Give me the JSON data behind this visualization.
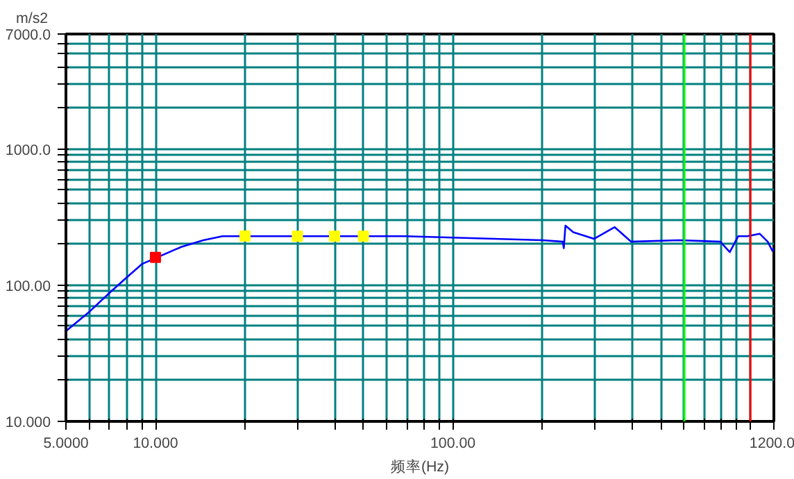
{
  "chart_data": {
    "type": "line",
    "xlabel": "频率(Hz)",
    "ylabel": "m/s2",
    "log": "xy",
    "grid": true,
    "xlim": [
      5,
      1200
    ],
    "ylim": [
      10,
      7000
    ],
    "xticks": [
      {
        "value": 5,
        "label": "5.0000"
      },
      {
        "value": 6,
        "label": null
      },
      {
        "value": 7,
        "label": null
      },
      {
        "value": 8,
        "label": null
      },
      {
        "value": 9,
        "label": null
      },
      {
        "value": 10,
        "label": "10.000"
      },
      {
        "value": 20,
        "label": null
      },
      {
        "value": 30,
        "label": null
      },
      {
        "value": 40,
        "label": null
      },
      {
        "value": 50,
        "label": null
      },
      {
        "value": 60,
        "label": null
      },
      {
        "value": 70,
        "label": null
      },
      {
        "value": 80,
        "label": null
      },
      {
        "value": 90,
        "label": null
      },
      {
        "value": 100,
        "label": "100.00"
      },
      {
        "value": 200,
        "label": null
      },
      {
        "value": 300,
        "label": null
      },
      {
        "value": 400,
        "label": null
      },
      {
        "value": 500,
        "label": null
      },
      {
        "value": 600,
        "label": null
      },
      {
        "value": 700,
        "label": null
      },
      {
        "value": 800,
        "label": null
      },
      {
        "value": 900,
        "label": null
      },
      {
        "value": 1000,
        "label": null
      },
      {
        "value": 1200,
        "label": "1200.0"
      }
    ],
    "yticks": [
      {
        "value": 10,
        "label": "10.000"
      },
      {
        "value": 20,
        "label": null
      },
      {
        "value": 30,
        "label": null
      },
      {
        "value": 40,
        "label": null
      },
      {
        "value": 50,
        "label": null
      },
      {
        "value": 60,
        "label": null
      },
      {
        "value": 70,
        "label": null
      },
      {
        "value": 80,
        "label": null
      },
      {
        "value": 90,
        "label": null
      },
      {
        "value": 100,
        "label": "100.00"
      },
      {
        "value": 200,
        "label": null
      },
      {
        "value": 300,
        "label": null
      },
      {
        "value": 400,
        "label": null
      },
      {
        "value": 500,
        "label": null
      },
      {
        "value": 600,
        "label": null
      },
      {
        "value": 700,
        "label": null
      },
      {
        "value": 800,
        "label": null
      },
      {
        "value": 900,
        "label": null
      },
      {
        "value": 1000,
        "label": "1000.0"
      },
      {
        "value": 2000,
        "label": null
      },
      {
        "value": 3000,
        "label": null
      },
      {
        "value": 4000,
        "label": null
      },
      {
        "value": 5000,
        "label": null
      },
      {
        "value": 6000,
        "label": null
      },
      {
        "value": 7000,
        "label": "7000.0"
      }
    ],
    "series": [
      {
        "color": "#0000ff",
        "x": [
          5,
          6,
          7.05,
          8,
          9,
          12.2,
          14.5,
          16.8,
          69,
          200,
          234,
          236,
          239,
          254,
          280,
          298,
          350,
          397,
          576,
          792,
          853,
          910,
          978,
          1075,
          1144,
          1186,
          1200
        ],
        "values": [
          46,
          64,
          89,
          114,
          143,
          191,
          214,
          229,
          229,
          214,
          209,
          187,
          274,
          245,
          229,
          219,
          267,
          209,
          214,
          209,
          175,
          229,
          229,
          239,
          209,
          179,
          187
        ]
      },
      {
        "type": "scatter",
        "marker": "square",
        "x": [
          10,
          20,
          30,
          40,
          50
        ],
        "values": [
          160,
          230,
          229,
          229,
          229
        ],
        "colors": [
          "#ff0000",
          "#ffff00",
          "#ffff00",
          "#ffff00",
          "#ffff00"
        ]
      }
    ],
    "ref_lines": [
      {
        "axis": "x",
        "value": 600,
        "color": "#00ff00"
      },
      {
        "axis": "x",
        "value": 1000,
        "color": "#ff0000"
      }
    ]
  }
}
